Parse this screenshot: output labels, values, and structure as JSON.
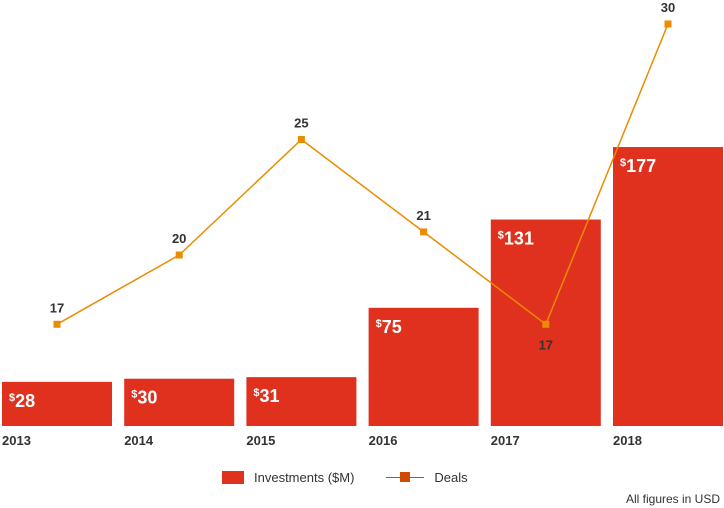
{
  "chart_data": {
    "type": "bar+line",
    "categories": [
      "2013",
      "2014",
      "2015",
      "2016",
      "2017",
      "2018"
    ],
    "series": [
      {
        "name": "Investments ($M)",
        "type": "bar",
        "values": [
          28,
          30,
          31,
          75,
          131,
          177
        ],
        "color": "#e0301e",
        "label_prefix": "$"
      },
      {
        "name": "Deals",
        "type": "line",
        "values": [
          17,
          20,
          25,
          21,
          17,
          30
        ],
        "color": "#eb8c00",
        "legend_color": "#d04a02"
      }
    ],
    "legend_placement": "bottom",
    "grid": false,
    "footnote": "All figures in USD"
  }
}
